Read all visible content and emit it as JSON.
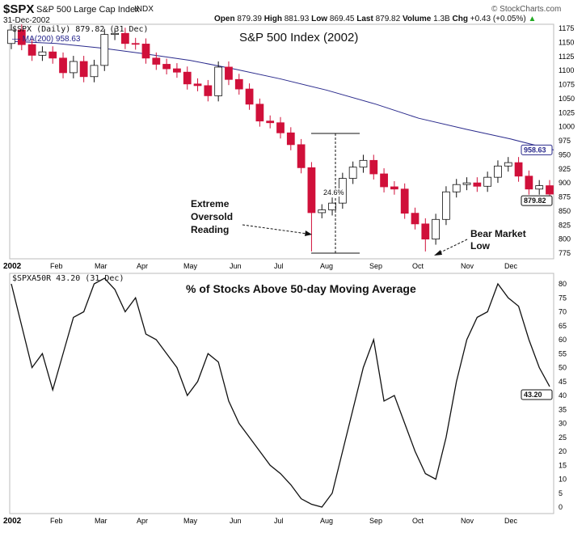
{
  "header": {
    "symbol": "$SPX",
    "name": "S&P 500 Large Cap Index",
    "exchange": "INDX",
    "date": "31-Dec-2002",
    "brand": "© StockCharts.com",
    "open_label": "Open",
    "open": "879.39",
    "high_label": "High",
    "high": "881.93",
    "low_label": "Low",
    "low": "869.45",
    "last_label": "Last",
    "last": "879.82",
    "volume_label": "Volume",
    "volume": "1.3B",
    "chg_label": "Chg",
    "chg": "+0.43 (+0.05%)"
  },
  "chart_data": [
    {
      "type": "candlestick",
      "title": "S&P 500 Index (2002)",
      "legend": [
        "$SPX (Daily) 879.82 (31 Dec)",
        "MA(200) 958.63"
      ],
      "ylim": [
        760,
        1185
      ],
      "yticks": [
        775,
        800,
        825,
        850,
        875,
        900,
        925,
        950,
        975,
        1000,
        1025,
        1050,
        1075,
        1100,
        1125,
        1150,
        1175
      ],
      "last_value": "879.82",
      "ma_value": "958.63",
      "weekly_closes": [
        1172,
        1146,
        1127,
        1133,
        1122,
        1096,
        1116,
        1089,
        1109,
        1164,
        1166,
        1148,
        1147,
        1122,
        1111,
        1103,
        1097,
        1076,
        1073,
        1055,
        1106,
        1084,
        1067,
        1040,
        1010,
        1007,
        989,
        968,
        927,
        847,
        852,
        864,
        908,
        928,
        940,
        916,
        893,
        889,
        846,
        827,
        800,
        835,
        884,
        897,
        900,
        894,
        910,
        930,
        936,
        912,
        889,
        895,
        880
      ],
      "ma200_monthly": [
        1152,
        1148,
        1140,
        1130,
        1118,
        1102,
        1085,
        1065,
        1040,
        1015,
        995,
        978,
        958.63
      ],
      "annotations": {
        "oversold": [
          "Extreme",
          "Oversold",
          "Reading"
        ],
        "bear": [
          "Bear Market",
          "Low"
        ],
        "rally": "24.6%"
      },
      "xticks": [
        "2002",
        "Feb",
        "Mar",
        "Apr",
        "May",
        "Jun",
        "Jul",
        "Aug",
        "Sep",
        "Oct",
        "Nov",
        "Dec"
      ]
    },
    {
      "type": "line",
      "title": "% of Stocks Above 50-day Moving Average",
      "legend": [
        "$SPXA50R 43.20 (31 Dec)"
      ],
      "ylim": [
        -2,
        83
      ],
      "yticks": [
        0,
        5,
        10,
        15,
        20,
        25,
        30,
        35,
        40,
        45,
        50,
        55,
        60,
        65,
        70,
        75,
        80
      ],
      "last_value": "43.20",
      "weekly_values": [
        80,
        65,
        50,
        55,
        42,
        55,
        68,
        70,
        80,
        82,
        78,
        70,
        75,
        62,
        60,
        55,
        50,
        40,
        45,
        55,
        52,
        38,
        30,
        25,
        20,
        15,
        12,
        8,
        3,
        1,
        0,
        5,
        20,
        35,
        50,
        60,
        38,
        40,
        30,
        20,
        12,
        10,
        25,
        45,
        60,
        68,
        70,
        80,
        75,
        72,
        60,
        50,
        43.2
      ],
      "xticks": [
        "2002",
        "Feb",
        "Mar",
        "Apr",
        "May",
        "Jun",
        "Jul",
        "Aug",
        "Sep",
        "Oct",
        "Nov",
        "Dec"
      ]
    }
  ]
}
